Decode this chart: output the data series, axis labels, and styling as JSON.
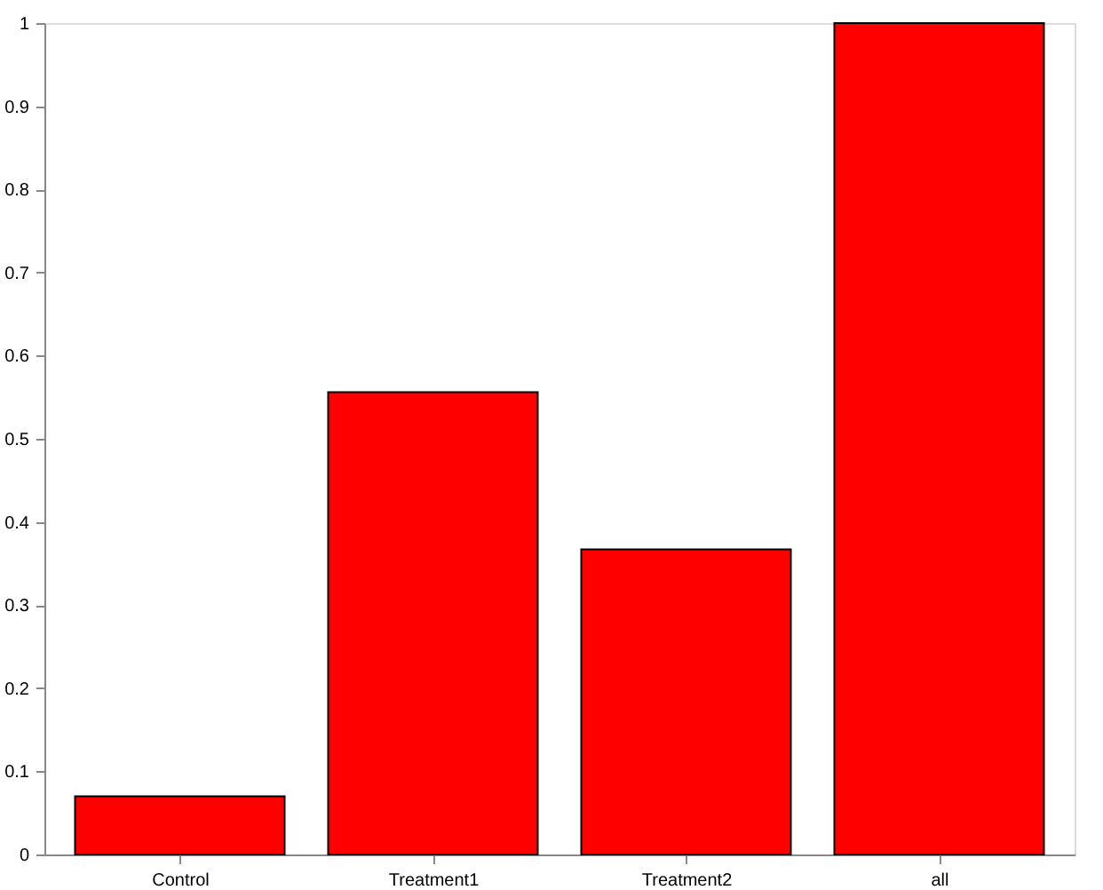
{
  "chart_data": {
    "type": "bar",
    "categories": [
      "Control",
      "Treatment1",
      "Treatment2",
      "all"
    ],
    "values": [
      0.07,
      0.556,
      0.367,
      1.0
    ],
    "color": "#ff0000",
    "ylim": [
      0,
      1
    ],
    "yticks": [
      0,
      0.1,
      0.2,
      0.3,
      0.4,
      0.5,
      0.6,
      0.7,
      0.8,
      0.9,
      1
    ],
    "grid": false
  }
}
